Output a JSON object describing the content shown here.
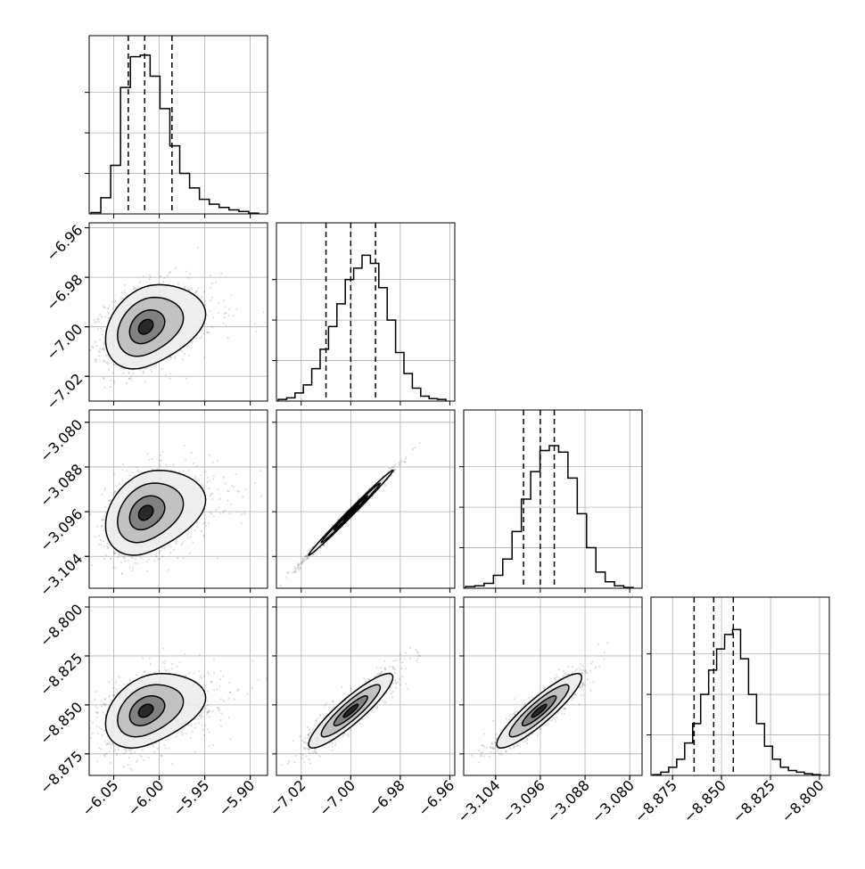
{
  "chart_data": {
    "type": "corner",
    "parameters": 4,
    "grid": true,
    "axis_ticks": [
      {
        "values": [
          -6.05,
          -6.0,
          -5.95,
          -5.9
        ],
        "labels": [
          "−6.05",
          "−6.00",
          "−5.95",
          "−5.90"
        ],
        "range": [
          -6.077,
          -5.881
        ]
      },
      {
        "values": [
          -7.02,
          -7.0,
          -6.98,
          -6.96
        ],
        "labels": [
          "−7.02",
          "−7.00",
          "−6.98",
          "−6.96"
        ],
        "range": [
          -7.03,
          -6.958
        ]
      },
      {
        "values": [
          -3.104,
          -3.096,
          -3.088,
          -3.08
        ],
        "labels": [
          "−3.104",
          "−3.096",
          "−3.088",
          "−3.080"
        ],
        "range": [
          -3.1097,
          -3.0778
        ]
      },
      {
        "values": [
          -8.875,
          -8.85,
          -8.825,
          -8.8
        ],
        "labels": [
          "−8.875",
          "−8.850",
          "−8.825",
          "−8.800"
        ],
        "range": [
          -8.886,
          -8.795
        ]
      }
    ],
    "marginal_histograms": [
      {
        "quantiles": [
          -6.034,
          -6.016,
          -5.986
        ],
        "counts": [
          0.8,
          10,
          30,
          78,
          97,
          98,
          85,
          65,
          42,
          25,
          16,
          9,
          6,
          4,
          2.5,
          1.5,
          0.5
        ],
        "ylim": [
          0,
          110
        ]
      },
      {
        "quantiles": [
          -7.01,
          -7.0,
          -6.99
        ],
        "counts": [
          1,
          2,
          5,
          10,
          20,
          32,
          46,
          60,
          75,
          82,
          90,
          85,
          70,
          50,
          30,
          17,
          8,
          3,
          1.5,
          1
        ],
        "ylim": [
          0,
          110
        ]
      },
      {
        "quantiles": [
          -3.099,
          -3.096,
          -3.0935
        ],
        "counts": [
          1,
          1.5,
          3,
          8,
          18,
          35,
          55,
          72,
          85,
          88,
          84,
          68,
          46,
          25,
          10,
          4,
          1.5,
          0.5
        ],
        "ylim": [
          0,
          110
        ]
      },
      {
        "quantiles": [
          -8.864,
          -8.854,
          -8.844
        ],
        "counts": [
          0.5,
          2,
          5,
          10,
          20,
          32,
          50,
          65,
          78,
          87,
          90,
          72,
          50,
          32,
          18,
          10,
          5,
          3,
          2,
          1,
          0.5
        ],
        "ylim": [
          0,
          110
        ]
      }
    ],
    "joint_distributions": [
      {
        "row": 1,
        "col": 0,
        "mean": [
          -6.015,
          -7.0
        ],
        "std": [
          0.022,
          0.0085
        ],
        "corr": 0.3,
        "skew_x": 0.02
      },
      {
        "row": 2,
        "col": 0,
        "mean": [
          -6.015,
          -3.0962
        ],
        "std": [
          0.022,
          0.0038
        ],
        "corr": 0.3,
        "skew_x": 0.02
      },
      {
        "row": 2,
        "col": 1,
        "mean": [
          -7.0,
          -3.0962
        ],
        "std": [
          0.0085,
          0.0038
        ],
        "corr": 0.995,
        "skew_x": 0
      },
      {
        "row": 3,
        "col": 0,
        "mean": [
          -6.015,
          -8.853
        ],
        "std": [
          0.022,
          0.0095
        ],
        "corr": 0.35,
        "skew_x": 0.02
      },
      {
        "row": 3,
        "col": 1,
        "mean": [
          -7.0,
          -8.853
        ],
        "std": [
          0.0085,
          0.0095
        ],
        "corr": 0.9,
        "skew_x": 0
      },
      {
        "row": 3,
        "col": 2,
        "mean": [
          -3.0962,
          -8.853
        ],
        "std": [
          0.0038,
          0.0095
        ],
        "corr": 0.9,
        "skew_x": 0
      }
    ]
  }
}
